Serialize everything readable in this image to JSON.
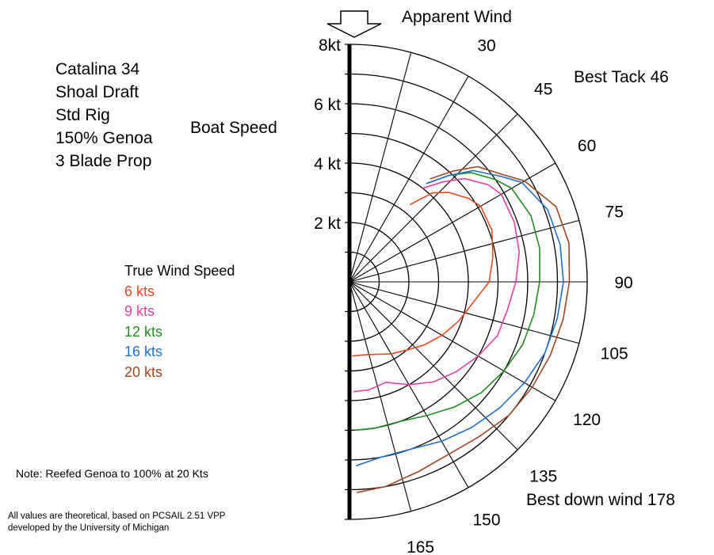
{
  "specs": [
    "Catalina 34",
    "Shoal Draft",
    "Std Rig",
    "150% Genoa",
    "3 Blade Prop"
  ],
  "boat_speed_label": "Boat Speed",
  "legend_title": "True Wind Speed",
  "note": "Note:  Reefed Genoa to  100% at 20 Kts",
  "footnote": [
    "All values are theoretical, based on PCSAIL 2.51 VPP",
    "developed by the University of Michigan"
  ],
  "colors": {
    "6 kts": "#e8491d",
    "9 kts": "#e83fa3",
    "12 kts": "#1e8f1e",
    "16 kts": "#1f6fd1",
    "20 kts": "#a0461e"
  },
  "chart_data": {
    "type": "polar",
    "title": "Apparent Wind",
    "radial_axis_label": "Boat Speed",
    "radial_range": [
      0,
      8
    ],
    "radial_unit": "kt",
    "radial_tick_labels": [
      {
        "value": 8,
        "label": "8kt"
      },
      {
        "value": 6,
        "label": "6 kt"
      },
      {
        "value": 4,
        "label": "4 kt"
      },
      {
        "value": 2,
        "label": "2 kt"
      }
    ],
    "angle_tick_labels": [
      "30",
      "45",
      "60",
      "75",
      "90",
      "105",
      "120",
      "135",
      "150",
      "165"
    ],
    "annotations": [
      "Best Tack 46",
      "Best down wind 178"
    ],
    "legend_title": "True Wind Speed",
    "angle_unit": "degrees off true wind",
    "series": [
      {
        "name": "6 kts",
        "color": "#e8491d",
        "angles": [
          38,
          43,
          48,
          55,
          60,
          70,
          80,
          90,
          100,
          110,
          120,
          130,
          140,
          150,
          160,
          170,
          178
        ],
        "values": [
          3.3,
          4.1,
          4.5,
          4.9,
          5.1,
          5.1,
          4.9,
          4.7,
          4.2,
          3.9,
          3.6,
          3.3,
          3.0,
          2.8,
          2.6,
          2.5,
          2.5
        ]
      },
      {
        "name": "9 kts",
        "color": "#e83fa3",
        "angles": [
          38,
          43,
          48,
          55,
          60,
          70,
          80,
          90,
          100,
          110,
          120,
          130,
          140,
          150,
          160,
          170,
          178
        ],
        "values": [
          4.0,
          4.6,
          5.2,
          5.7,
          5.9,
          5.9,
          5.8,
          5.6,
          5.4,
          5.3,
          5.0,
          4.7,
          4.4,
          4.0,
          3.6,
          3.7,
          3.7
        ]
      },
      {
        "name": "12 kts",
        "color": "#1e8f1e",
        "angles": [
          38,
          43,
          48,
          55,
          60,
          70,
          80,
          90,
          100,
          110,
          120,
          130,
          140,
          150,
          160,
          170,
          178
        ],
        "values": [
          4.2,
          4.9,
          5.5,
          6.0,
          6.3,
          6.5,
          6.5,
          6.4,
          6.3,
          6.2,
          6.0,
          5.8,
          5.5,
          5.2,
          5.0,
          5.0,
          5.0
        ]
      },
      {
        "name": "16 kts",
        "color": "#1f6fd1",
        "angles": [
          38,
          43,
          48,
          55,
          60,
          70,
          80,
          90,
          100,
          110,
          120,
          130,
          140,
          150,
          160,
          170,
          178
        ],
        "values": [
          4.2,
          4.9,
          5.6,
          6.2,
          6.7,
          7.1,
          7.2,
          7.2,
          7.1,
          7.0,
          6.8,
          6.6,
          6.4,
          6.2,
          6.0,
          6.0,
          6.2
        ]
      },
      {
        "name": "20 kts",
        "color": "#a0461e",
        "angles": [
          38,
          43,
          48,
          55,
          60,
          70,
          80,
          90,
          100,
          110,
          120,
          130,
          140,
          150,
          160,
          170,
          178
        ],
        "values": [
          4.4,
          5.1,
          5.8,
          6.3,
          6.8,
          7.4,
          7.5,
          7.4,
          7.3,
          7.2,
          7.1,
          7.0,
          6.8,
          6.7,
          6.8,
          7.0,
          7.1
        ]
      }
    ]
  }
}
